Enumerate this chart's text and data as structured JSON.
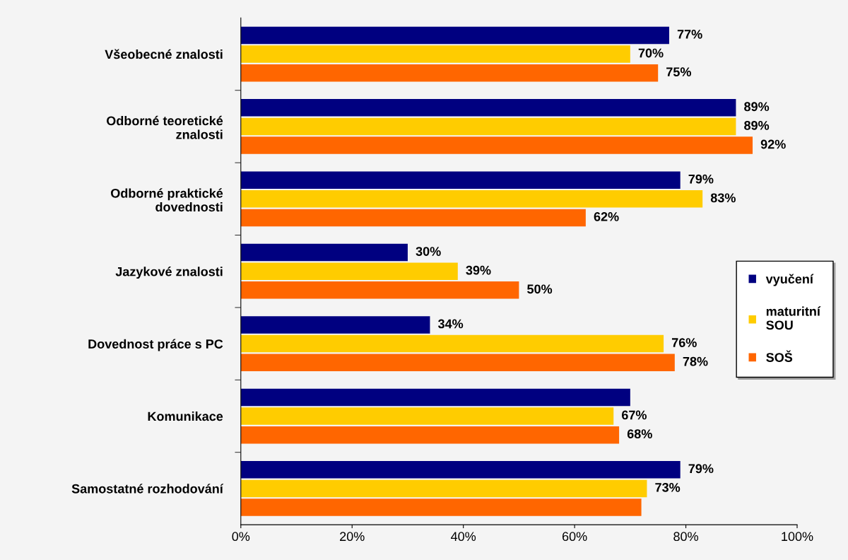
{
  "chart_data": {
    "type": "bar",
    "orientation": "horizontal",
    "categories": [
      "Všeobecné znalosti",
      "Odborné teoretické\nznalosti",
      "Odborné praktické\ndovednosti",
      "Jazykové znalosti",
      "Dovednost práce s PC",
      "Komunikace",
      "Samostatné rozhodování"
    ],
    "series": [
      {
        "name": "vyučení",
        "color": "#000080",
        "values": [
          77,
          89,
          79,
          30,
          34,
          70,
          79
        ],
        "value_labels": [
          "77%",
          "89%",
          "79%",
          "30%",
          "34%",
          null,
          "79%"
        ]
      },
      {
        "name": "maturitní\nSOU",
        "color": "#ffcc00",
        "values": [
          70,
          89,
          83,
          39,
          76,
          67,
          73
        ],
        "value_labels": [
          "70%",
          "89%",
          "83%",
          "39%",
          "76%",
          "67%",
          "73%"
        ]
      },
      {
        "name": "SOŠ",
        "color": "#ff6600",
        "values": [
          75,
          92,
          62,
          50,
          78,
          68,
          72
        ],
        "value_labels": [
          "75%",
          "92%",
          "62%",
          "50%",
          "78%",
          "68%",
          null
        ]
      }
    ],
    "xlim": [
      0,
      100
    ],
    "xticks": [
      {
        "value": 0,
        "label": "0%"
      },
      {
        "value": 20,
        "label": "20%"
      },
      {
        "value": 40,
        "label": "40%"
      },
      {
        "value": 60,
        "label": "60%"
      },
      {
        "value": 80,
        "label": "80%"
      },
      {
        "value": 100,
        "label": "100%"
      }
    ],
    "grid": false,
    "legend": "right"
  }
}
